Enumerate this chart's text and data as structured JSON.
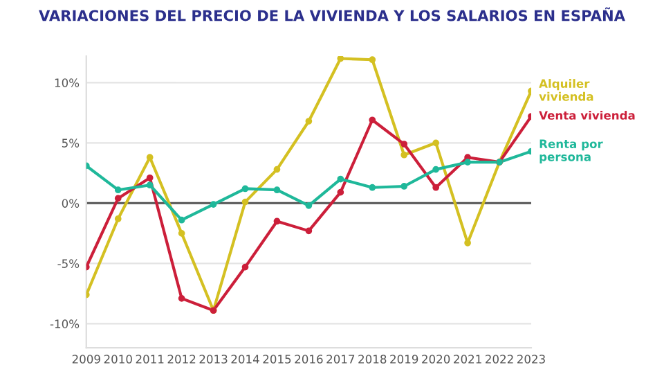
{
  "chart_data": {
    "type": "line",
    "title": "VARIACIONES DEL PRECIO DE LA VIVIENDA Y LOS SALARIOS EN ESPAÑA",
    "x": [
      2009,
      2010,
      2011,
      2012,
      2013,
      2014,
      2015,
      2016,
      2017,
      2018,
      2019,
      2020,
      2021,
      2022,
      2023
    ],
    "series": [
      {
        "name": "Alquiler\nvivienda",
        "color": "#d4c022",
        "values": [
          -7.6,
          -1.3,
          3.8,
          -2.5,
          -8.9,
          0.1,
          2.8,
          6.8,
          12.0,
          11.9,
          4.0,
          5.0,
          -3.3,
          3.4,
          9.3
        ]
      },
      {
        "name": "Venta vivienda",
        "color": "#cc1f3a",
        "values": [
          -5.3,
          0.4,
          2.1,
          -7.9,
          -8.9,
          -5.3,
          -1.5,
          -2.3,
          0.9,
          6.9,
          4.9,
          1.3,
          3.8,
          3.4,
          7.2
        ]
      },
      {
        "name": "Renta por\npersona",
        "color": "#1fb89a",
        "values": [
          3.1,
          1.1,
          1.5,
          -1.4,
          -0.1,
          1.2,
          1.1,
          -0.2,
          2.0,
          1.3,
          1.4,
          2.8,
          3.4,
          3.4,
          4.3
        ]
      }
    ],
    "xlim": [
      2009,
      2023
    ],
    "xticks": [
      2009,
      2010,
      2011,
      2012,
      2013,
      2014,
      2015,
      2016,
      2017,
      2018,
      2019,
      2020,
      2021,
      2022,
      2023
    ],
    "ylim": [
      -12,
      12.2
    ],
    "yticks": [
      {
        "value": -10,
        "label": "-10%"
      },
      {
        "value": -5,
        "label": "-5%"
      },
      {
        "value": 0,
        "label": "0%"
      },
      {
        "value": 5,
        "label": "5%"
      },
      {
        "value": 10,
        "label": "10%"
      }
    ],
    "ref_lines": [
      {
        "axis": "y",
        "value": 0,
        "label": null,
        "color": "#555555"
      }
    ],
    "grid": "y",
    "legend": false,
    "marker": "circle",
    "line_style": "solid"
  }
}
